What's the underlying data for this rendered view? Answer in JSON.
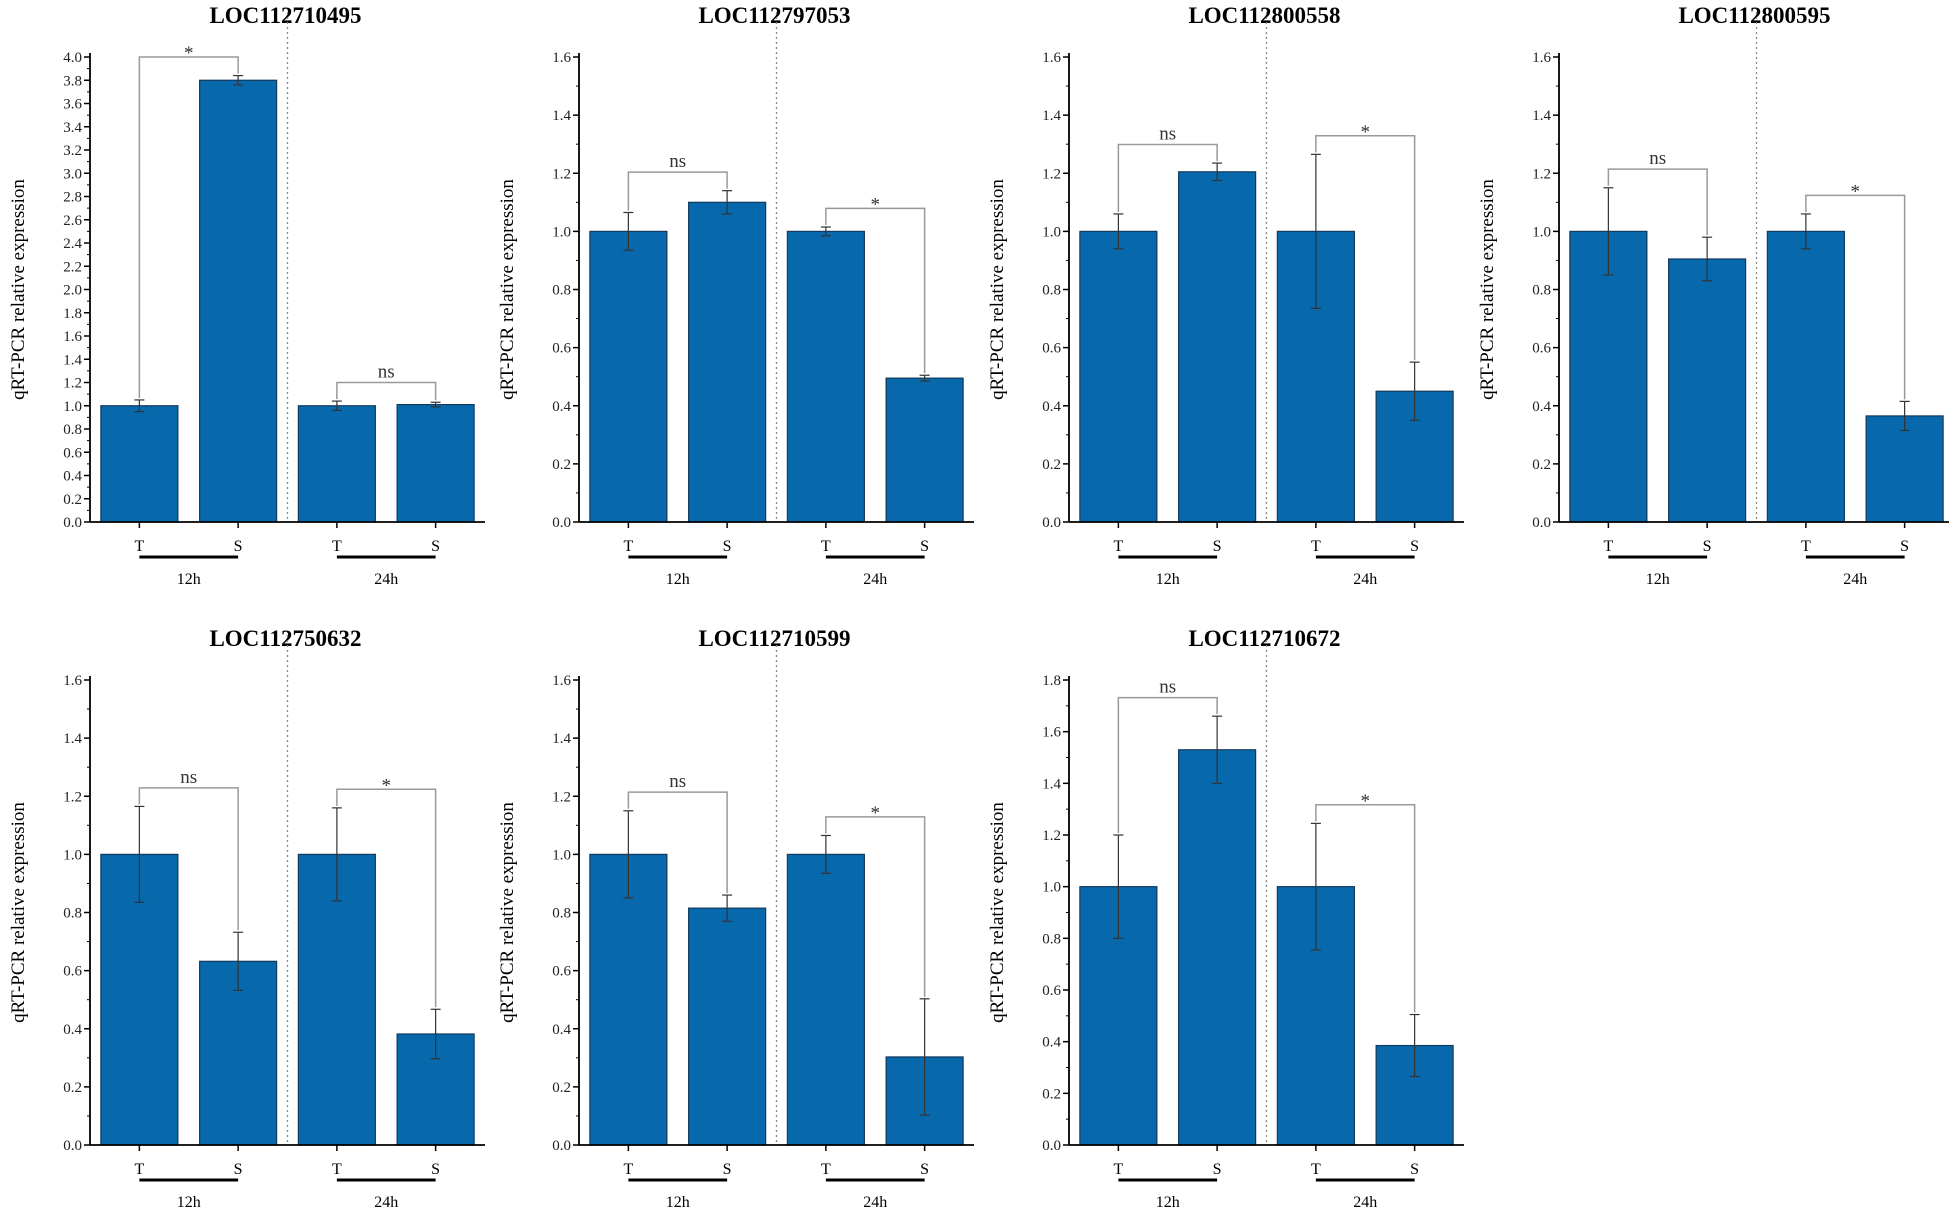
{
  "chart_data": [
    {
      "type": "bar",
      "title": "LOC112710495",
      "ylabel": "qRT-PCR relative expression",
      "ylim": [
        0,
        4.0
      ],
      "ystep": 0.2,
      "groups": [
        "12h",
        "24h"
      ],
      "categories": [
        "T",
        "S",
        "T",
        "S"
      ],
      "values": [
        1.0,
        3.8,
        1.0,
        1.01
      ],
      "errors": [
        0.05,
        0.04,
        0.04,
        0.02
      ],
      "significance": [
        "*",
        "ns"
      ]
    },
    {
      "type": "bar",
      "title": "LOC112797053",
      "ylabel": "qRT-PCR relative expression",
      "ylim": [
        0,
        1.6
      ],
      "ystep": 0.2,
      "groups": [
        "12h",
        "24h"
      ],
      "categories": [
        "T",
        "S",
        "T",
        "S"
      ],
      "values": [
        1.0,
        1.1,
        1.0,
        0.495
      ],
      "errors": [
        0.065,
        0.04,
        0.015,
        0.01
      ],
      "significance": [
        "ns",
        "*"
      ]
    },
    {
      "type": "bar",
      "title": "LOC112800558",
      "ylabel": "qRT-PCR relative expression",
      "ylim": [
        0,
        1.6
      ],
      "ystep": 0.2,
      "groups": [
        "12h",
        "24h"
      ],
      "categories": [
        "T",
        "S",
        "T",
        "S"
      ],
      "values": [
        1.0,
        1.205,
        1.0,
        0.45
      ],
      "errors": [
        0.06,
        0.03,
        0.265,
        0.1
      ],
      "significance": [
        "ns",
        "*"
      ]
    },
    {
      "type": "bar",
      "title": "LOC112800595",
      "ylabel": "qRT-PCR relative expression",
      "ylim": [
        0,
        1.6
      ],
      "ystep": 0.2,
      "groups": [
        "12h",
        "24h"
      ],
      "categories": [
        "T",
        "S",
        "T",
        "S"
      ],
      "values": [
        1.0,
        0.905,
        1.0,
        0.365
      ],
      "errors": [
        0.15,
        0.075,
        0.06,
        0.05
      ],
      "significance": [
        "ns",
        "*"
      ]
    },
    {
      "type": "bar",
      "title": "LOC112750632",
      "ylabel": "qRT-PCR relative expression",
      "ylim": [
        0,
        1.6
      ],
      "ystep": 0.2,
      "groups": [
        "12h",
        "24h"
      ],
      "categories": [
        "T",
        "S",
        "T",
        "S"
      ],
      "values": [
        1.0,
        0.632,
        1.0,
        0.382
      ],
      "errors": [
        0.165,
        0.1,
        0.16,
        0.085
      ],
      "significance": [
        "ns",
        "*"
      ]
    },
    {
      "type": "bar",
      "title": "LOC112710599",
      "ylabel": "qRT-PCR relative expression",
      "ylim": [
        0,
        1.6
      ],
      "ystep": 0.2,
      "groups": [
        "12h",
        "24h"
      ],
      "categories": [
        "T",
        "S",
        "T",
        "S"
      ],
      "values": [
        1.0,
        0.815,
        1.0,
        0.303
      ],
      "errors": [
        0.15,
        0.045,
        0.065,
        0.2
      ],
      "significance": [
        "ns",
        "*"
      ]
    },
    {
      "type": "bar",
      "title": "LOC112710672",
      "ylabel": "qRT-PCR relative expression",
      "ylim": [
        0,
        1.8
      ],
      "ystep": 0.2,
      "groups": [
        "12h",
        "24h"
      ],
      "categories": [
        "T",
        "S",
        "T",
        "S"
      ],
      "values": [
        1.0,
        1.53,
        1.0,
        0.385
      ],
      "errors": [
        0.2,
        0.13,
        0.245,
        0.12
      ],
      "significance": [
        "ns",
        "*"
      ]
    }
  ],
  "colors": {
    "bar": "#0868ac",
    "bar_edge": "#123a5c",
    "bracket": "#999999",
    "axis": "#000000"
  }
}
